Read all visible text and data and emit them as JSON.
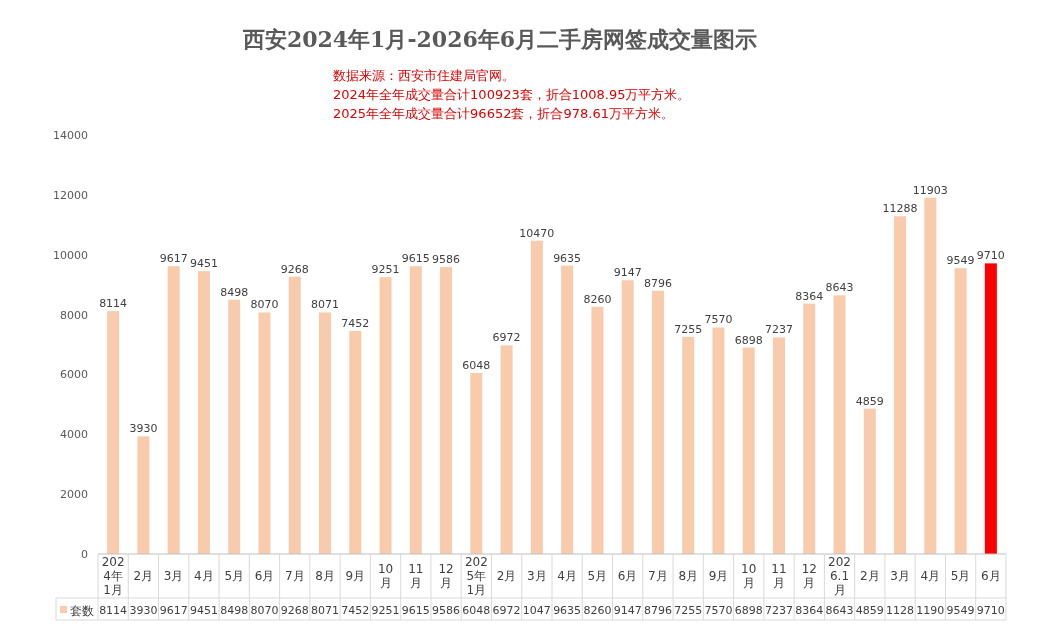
{
  "chart_data": {
    "type": "bar",
    "title": "西安2024年1月-2026年6月二手房网签成交量图示",
    "annotations": [
      "数据来源：西安市住建局官网。",
      "2024年全年成交量合计100923套，折合1008.95万平方米。",
      "2025年全年成交量合计96652套，折合978.61万平方米。",
      "8114",
      "3930",
      "9617",
      "9451",
      "8498",
      "8070",
      "9268",
      "8071",
      "7452",
      "9251",
      "9615",
      "9586",
      "6048",
      "6972",
      "1047",
      "9635",
      "8260",
      "9147",
      "8796",
      "7255",
      "7570",
      "6898",
      "7237",
      "8364",
      "8643",
      "4859",
      "1128",
      "1190",
      "9549",
      "9710"
    ],
    "categories": [
      "2024年1月",
      "2月",
      "3月",
      "4月",
      "5月",
      "6月",
      "7月",
      "8月",
      "9月",
      "10月",
      "11月",
      "12月",
      "2025年1月",
      "2月",
      "3月",
      "4月",
      "5月",
      "6月",
      "7月",
      "8月",
      "9月",
      "10月",
      "11月",
      "12月",
      "2026.1月",
      "2月",
      "3月",
      "4月",
      "5月",
      "6月"
    ],
    "series": [
      {
        "name": "套数",
        "color": "#f8cbad",
        "colors": [
          "#f8cbad",
          "#f8cbad",
          "#f8cbad",
          "#f8cbad",
          "#f8cbad",
          "#f8cbad",
          "#f8cbad",
          "#f8cbad",
          "#f8cbad",
          "#f8cbad",
          "#f8cbad",
          "#f8cbad",
          "#f8cbad",
          "#f8cbad",
          "#f8cbad",
          "#f8cbad",
          "#f8cbad",
          "#f8cbad",
          "#f8cbad",
          "#f8cbad",
          "#f8cbad",
          "#f8cbad",
          "#f8cbad",
          "#f8cbad",
          "#f8cbad",
          "#f8cbad",
          "#f8cbad",
          "#f8cbad",
          "#f8cbad",
          "#ff0000"
        ],
        "value_labels": [
          "8114",
          "3930",
          "9617",
          "9451",
          "8498",
          "8070",
          "9268",
          "8071",
          "7452",
          "9251",
          "9615",
          "9586",
          "6048",
          "6972",
          "10470",
          "9635",
          "8260",
          "9147",
          "8796",
          "7255",
          "7570",
          "6898",
          "7237",
          "8364",
          "8643",
          "4859",
          "11288",
          "11903",
          "9549",
          "9710"
        ],
        "values": [
          8114,
          3930,
          9617,
          9451,
          8498,
          8070,
          9268,
          8071,
          7452,
          9251,
          9615,
          9586,
          6048,
          6972,
          10470,
          9635,
          8260,
          9147,
          8796,
          7255,
          7570,
          6898,
          7237,
          8364,
          8643,
          4859,
          11288,
          11903,
          9549,
          9710
        ]
      }
    ],
    "ylim": [
      0,
      14000
    ],
    "yticks": [
      0,
      2000,
      4000,
      6000,
      8000,
      10000,
      12000,
      14000
    ],
    "grid": false,
    "legend": "bottom"
  }
}
